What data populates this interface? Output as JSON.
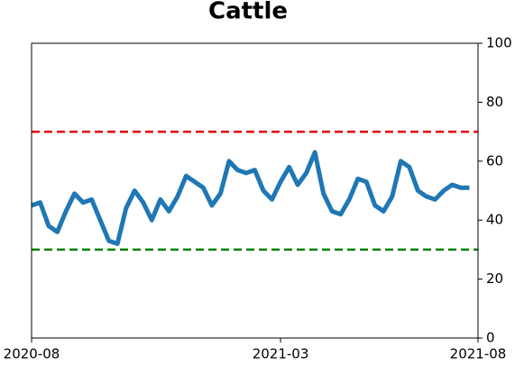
{
  "chart_data": {
    "type": "line",
    "title": "Cattle",
    "categories": [
      "2020-08",
      null,
      null,
      null,
      null,
      null,
      null,
      null,
      null,
      null,
      null,
      null,
      null,
      null,
      null,
      null,
      null,
      null,
      null,
      null,
      null,
      null,
      null,
      null,
      null,
      null,
      null,
      null,
      null,
      "2021-03",
      null,
      null,
      null,
      null,
      null,
      null,
      null,
      null,
      null,
      null,
      null,
      null,
      null,
      null,
      null,
      null,
      null,
      null,
      null,
      null,
      null,
      null,
      "2021-08"
    ],
    "series": [
      {
        "name": "Cattle",
        "color": "#1f77b4",
        "values": [
          45,
          46,
          38,
          36,
          43,
          49,
          46,
          47,
          40,
          33,
          32,
          44,
          50,
          46,
          40,
          47,
          43,
          48,
          55,
          53,
          51,
          45,
          49,
          60,
          57,
          56,
          57,
          50,
          47,
          53,
          58,
          52,
          56,
          63,
          49,
          43,
          42,
          47,
          54,
          53,
          45,
          43,
          48,
          60,
          58,
          50,
          48,
          47,
          50,
          52,
          51,
          51,
          null
        ]
      }
    ],
    "ylim": [
      0,
      100
    ],
    "yticks": [
      0,
      20,
      40,
      60,
      80,
      100
    ],
    "hlines": [
      {
        "value": 70,
        "color": "#e00000"
      },
      {
        "value": 30,
        "color": "#008000"
      }
    ]
  }
}
